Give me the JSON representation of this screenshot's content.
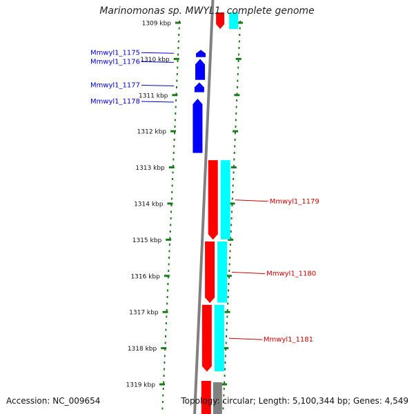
{
  "title": "Marinomonas sp. MWYL1, complete genome",
  "footer": {
    "accession": "Accession: NC_009654",
    "summary": "Topology: circular; Length: 5,100,344 bp; Genes: 4,549"
  },
  "colors": {
    "tick": "#1a7a1a",
    "backbone": "#808080",
    "forward_cds": "#ff0000",
    "forward_feature": "#00ffff",
    "reverse_cds": "#0000ff",
    "label_forward": "#cc0000",
    "label_reverse": "#0000cc"
  },
  "scale": {
    "unit": "kbp",
    "ticks": [
      "1309 kbp",
      "1310 kbp",
      "1311 kbp",
      "1312 kbp",
      "1313 kbp",
      "1314 kbp",
      "1315 kbp",
      "1316 kbp",
      "1317 kbp",
      "1318 kbp",
      "1319 kbp"
    ]
  },
  "genes": [
    {
      "label": "Mmwyl1_1175",
      "strand": "reverse",
      "start_kbp": 1309.75,
      "end_kbp": 1309.95
    },
    {
      "label": "Mmwyl1_1176",
      "strand": "reverse",
      "start_kbp": 1310.0,
      "end_kbp": 1310.58
    },
    {
      "label": "Mmwyl1_1177",
      "strand": "reverse",
      "start_kbp": 1310.65,
      "end_kbp": 1310.92
    },
    {
      "label": "Mmwyl1_1178",
      "strand": "reverse",
      "start_kbp": 1311.1,
      "end_kbp": 1312.6
    },
    {
      "label": "Mmwyl1_1179",
      "strand": "forward",
      "start_kbp": 1312.8,
      "end_kbp": 1315.0
    },
    {
      "label": "Mmwyl1_1180",
      "strand": "forward",
      "start_kbp": 1315.05,
      "end_kbp": 1316.75
    },
    {
      "label": "Mmwyl1_1181",
      "strand": "forward",
      "start_kbp": 1316.8,
      "end_kbp": 1318.65
    }
  ]
}
